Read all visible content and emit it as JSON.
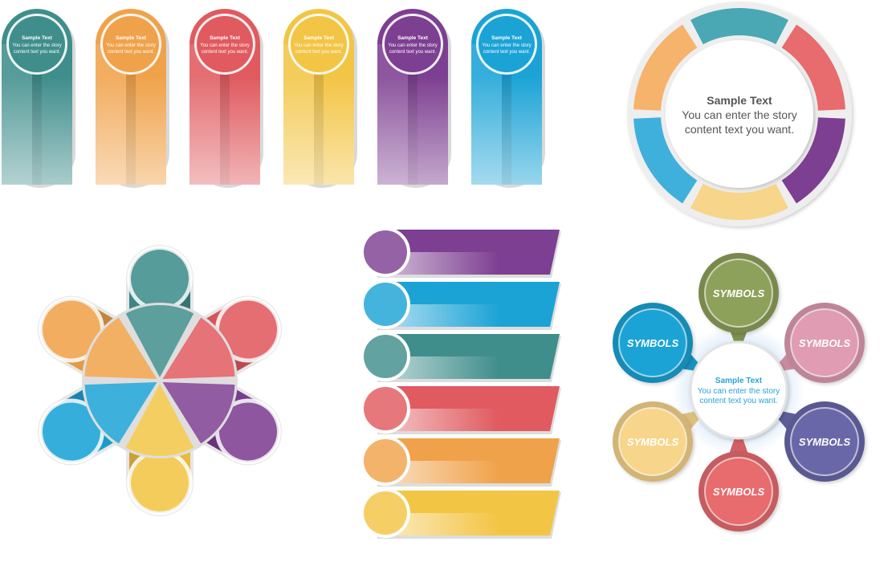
{
  "colors": {
    "teal": "#3f8e8c",
    "orange": "#f0a24a",
    "red": "#e05a5f",
    "yellow": "#f3c545",
    "purple": "#7d3f91",
    "blue": "#1ba3d6",
    "sea": "#4aa8b4",
    "light_blue": "#3fb0dc",
    "light_orange": "#f6b36b",
    "light_yellow": "#f7d58b",
    "pink": "#df9cb3",
    "indigo": "#6a67a9",
    "olive": "#8ea15b",
    "coral": "#e86b6e"
  },
  "pillars": {
    "title": "Sample Text",
    "body_line1": "You can enter the story",
    "body_line2": "content text you want.",
    "items": [
      {
        "color": "teal"
      },
      {
        "color": "orange"
      },
      {
        "color": "red"
      },
      {
        "color": "yellow"
      },
      {
        "color": "purple"
      },
      {
        "color": "blue"
      }
    ]
  },
  "ring": {
    "title": "Sample Text",
    "body_line1": "You can enter the story",
    "body_line2": "content text you want.",
    "segments": [
      "sea",
      "coral",
      "purple",
      "light_yellow",
      "light_blue",
      "light_orange"
    ]
  },
  "star": {
    "arms": [
      "teal",
      "red",
      "purple",
      "yellow",
      "blue",
      "orange"
    ]
  },
  "banners": {
    "items": [
      "purple",
      "blue",
      "teal",
      "red",
      "orange",
      "yellow"
    ]
  },
  "flower": {
    "title": "Sample Text",
    "body_line1": "You can enter the story",
    "body_line2": "content text you want.",
    "petals": [
      {
        "label": "SYMBOLS",
        "color": "olive"
      },
      {
        "label": "SYMBOLS",
        "color": "pink"
      },
      {
        "label": "SYMBOLS",
        "color": "indigo"
      },
      {
        "label": "SYMBOLS",
        "color": "coral"
      },
      {
        "label": "SYMBOLS",
        "color": "light_yellow"
      },
      {
        "label": "SYMBOLS",
        "color": "blue"
      }
    ]
  }
}
